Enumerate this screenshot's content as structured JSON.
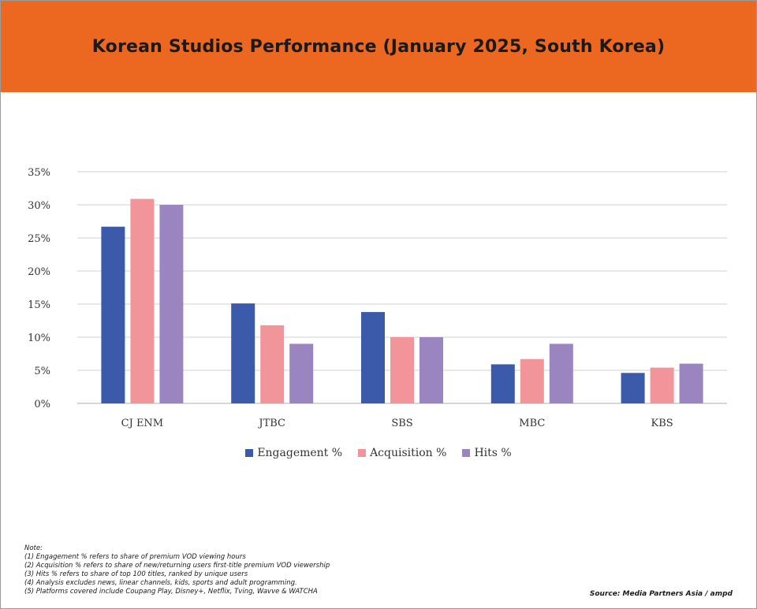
{
  "header": {
    "title": "Korean Studios Performance (January 2025, South Korea)"
  },
  "colors": {
    "header_bg": "#ec671f",
    "engagement": "#3b5aa9",
    "acquisition": "#f2959a",
    "hits": "#9a85c0"
  },
  "chart_data": {
    "type": "bar",
    "categories": [
      "CJ ENM",
      "JTBC",
      "SBS",
      "MBC",
      "KBS"
    ],
    "series": [
      {
        "name": "Engagement %",
        "values": [
          26.7,
          15.1,
          13.8,
          5.9,
          4.6
        ]
      },
      {
        "name": "Acquisition %",
        "values": [
          30.9,
          11.8,
          10.0,
          6.7,
          5.4
        ]
      },
      {
        "name": "Hits %",
        "values": [
          30.0,
          9.0,
          10.0,
          9.0,
          6.0
        ]
      }
    ],
    "ylim": [
      0,
      35
    ],
    "yticks": [
      0,
      5,
      10,
      15,
      20,
      25,
      30,
      35
    ],
    "ytick_labels": [
      "0%",
      "5%",
      "10%",
      "15%",
      "20%",
      "25%",
      "30%",
      "35%"
    ],
    "grid": true,
    "legend_position": "bottom"
  },
  "notes": {
    "heading": "Note:",
    "lines": [
      "(1) Engagement % refers to share of premium VOD viewing hours",
      "(2) Acquisition % refers to share of new/returning users first-title premium VOD viewership",
      "(3) Hits % refers to share of top 100 titles, ranked by unique users",
      "(4) Analysis excludes news, linear channels, kids, sports and adult programming.",
      "(5) Platforms covered include Coupang Play, Disney+, Netflix, Tving, Wavve & WATCHA"
    ]
  },
  "source": "Source: Media Partners Asia / ampd"
}
